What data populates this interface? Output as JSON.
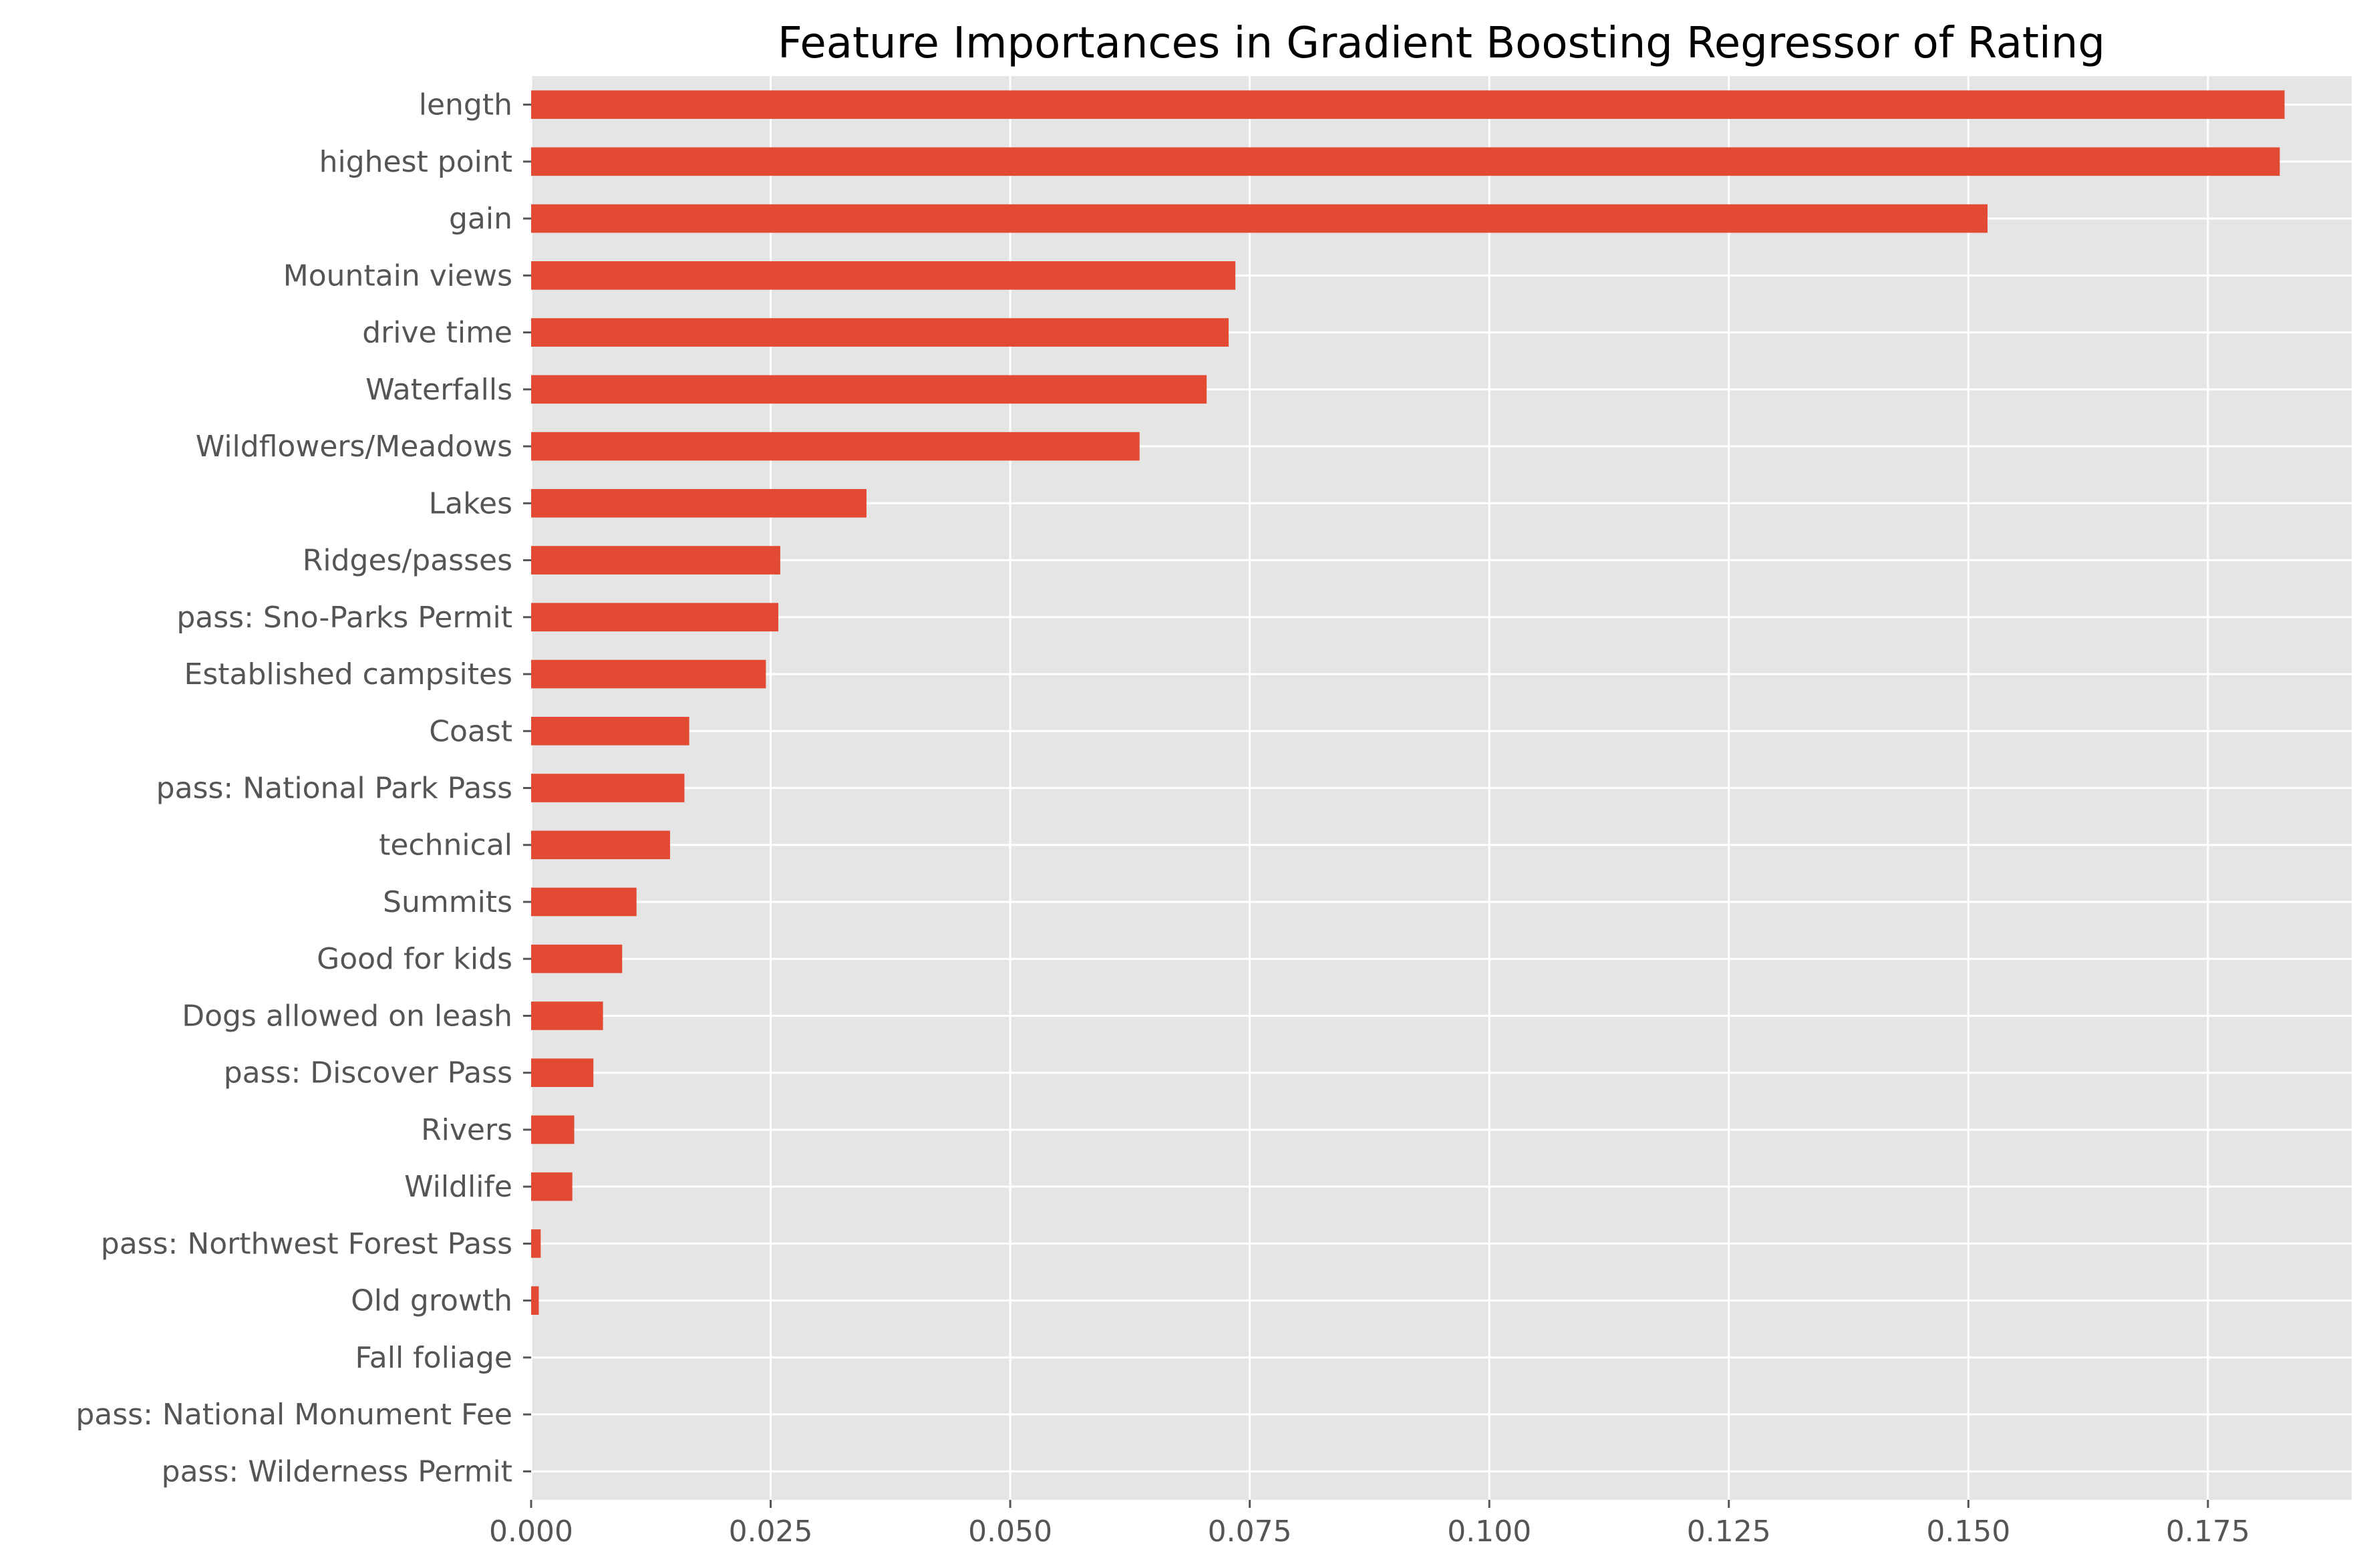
{
  "colors": {
    "bar": "#E24A33",
    "plot_background": "#E5E5E5",
    "grid": "#FFFFFF",
    "tick_text": "#555555",
    "title_text": "#000000"
  },
  "chart_data": {
    "type": "bar",
    "orientation": "horizontal",
    "title": "Feature Importances in Gradient Boosting Regressor of Rating",
    "xlabel": "",
    "ylabel": "",
    "grid": true,
    "xlim": [
      0,
      0.19
    ],
    "xticks": [
      0.0,
      0.025,
      0.05,
      0.075,
      0.1,
      0.125,
      0.15,
      0.175
    ],
    "xtick_labels": [
      "0.000",
      "0.025",
      "0.050",
      "0.075",
      "0.100",
      "0.125",
      "0.150",
      "0.175"
    ],
    "categories": [
      "length",
      "highest point",
      "gain",
      "Mountain views",
      "drive time",
      "Waterfalls",
      "Wildflowers/Meadows",
      "Lakes",
      "Ridges/passes",
      "pass: Sno-Parks Permit",
      "Established campsites",
      "Coast",
      "pass: National Park Pass",
      "technical",
      "Summits",
      "Good for kids",
      "Dogs allowed on leash",
      "pass: Discover Pass",
      "Rivers",
      "Wildlife",
      "pass: Northwest Forest Pass",
      "Old growth",
      "Fall foliage",
      "pass: National Monument Fee",
      "pass: Wilderness Permit"
    ],
    "values": [
      0.183,
      0.1825,
      0.152,
      0.0735,
      0.0728,
      0.0705,
      0.0635,
      0.035,
      0.026,
      0.0258,
      0.0245,
      0.0165,
      0.016,
      0.0145,
      0.011,
      0.0095,
      0.0075,
      0.0065,
      0.0045,
      0.0043,
      0.001,
      0.0008,
      0.0,
      0.0,
      0.0
    ]
  }
}
